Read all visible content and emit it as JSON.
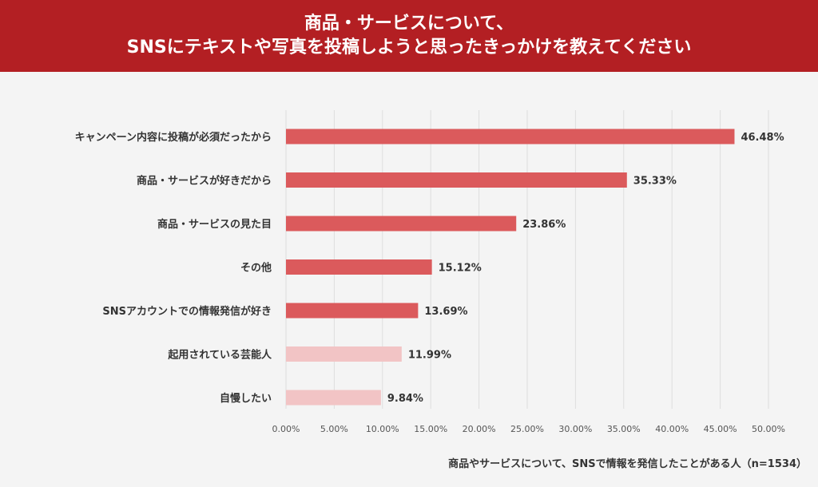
{
  "header": {
    "title_line1": "商品・サービスについて、",
    "title_line2": "SNSにテキストや写真を投稿しようと思ったきっかけを教えてください"
  },
  "footnote": "商品やサービスについて、SNSで情報を発信したことがある人（n=1534）",
  "colors": {
    "header_bg": "#b31f23",
    "bar_primary": "#db5a5c",
    "bar_secondary": "#f2c4c5",
    "background": "#f4f4f4",
    "grid": "#dddddd"
  },
  "chart_data": {
    "type": "bar",
    "orientation": "horizontal",
    "categories": [
      "キャンペーン内容に投稿が必須だったから",
      "商品・サービスが好きだから",
      "商品・サービスの見た目",
      "その他",
      "SNSアカウントでの情報発信が好き",
      "起用されている芸能人",
      "自慢したい"
    ],
    "values": [
      46.48,
      35.33,
      23.86,
      15.12,
      13.69,
      11.99,
      9.84
    ],
    "value_labels": [
      "46.48%",
      "35.33%",
      "23.86%",
      "15.12%",
      "13.69%",
      "11.99%",
      "9.84%"
    ],
    "bar_colors": [
      "#db5a5c",
      "#db5a5c",
      "#db5a5c",
      "#db5a5c",
      "#db5a5c",
      "#f2c4c5",
      "#f2c4c5"
    ],
    "xlim": [
      0,
      50
    ],
    "x_ticks": [
      "0.00%",
      "5.00%",
      "10.00%",
      "15.00%",
      "20.00%",
      "25.00%",
      "30.00%",
      "35.00%",
      "40.00%",
      "45.00%",
      "50.00%"
    ],
    "grid": true,
    "legend": false
  }
}
